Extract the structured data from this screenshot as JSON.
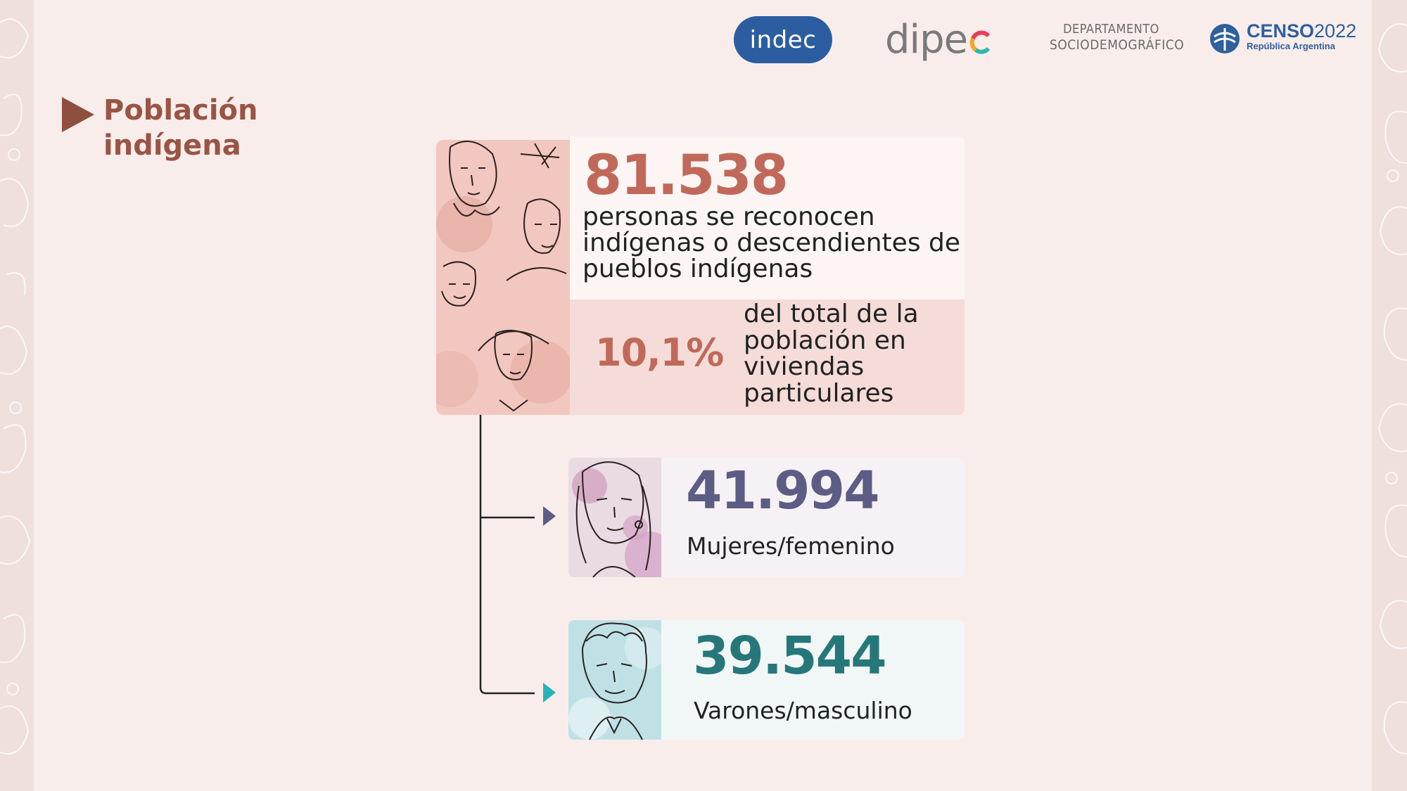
{
  "header": {
    "logos": {
      "indec": "indec",
      "dipec": "dipe",
      "departamento_line1": "DEPARTAMENTO",
      "departamento_line2": "SOCIODEMOGRÁFICO",
      "censo_main": "CENSO",
      "censo_year": "2022",
      "censo_sub": "República Argentina"
    }
  },
  "section": {
    "title": "Población indígena"
  },
  "main": {
    "total_value": "81.538",
    "total_description": "personas se reconocen indígenas o descendientes de pueblos indígenas",
    "percent_value": "10,1%",
    "percent_description": "del total de la población en viviendas particulares"
  },
  "women": {
    "value": "41.994",
    "label": "Mujeres/femenino"
  },
  "men": {
    "value": "39.544",
    "label": "Varones/masculino"
  },
  "colors": {
    "background": "#f9edeb",
    "title": "#9a5444",
    "total_accent": "#c0695a",
    "women_accent": "#5c5c85",
    "men_accent": "#25777a",
    "women_arrow": "#5c5c85",
    "men_arrow": "#26b3b8"
  }
}
